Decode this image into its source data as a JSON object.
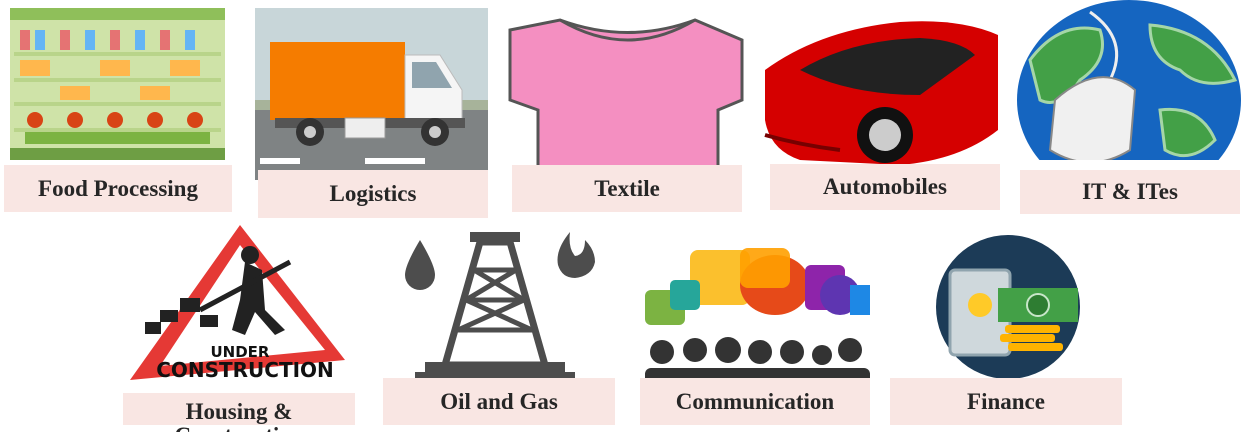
{
  "tiles": [
    {
      "label": "Food Processing"
    },
    {
      "label": "Logistics"
    },
    {
      "label": "Textile"
    },
    {
      "label": "Automobiles"
    },
    {
      "label": "IT & ITes"
    },
    {
      "label": "Housing & Construction"
    },
    {
      "label": "Oil and Gas"
    },
    {
      "label": "Communication"
    },
    {
      "label": "Finance"
    }
  ]
}
